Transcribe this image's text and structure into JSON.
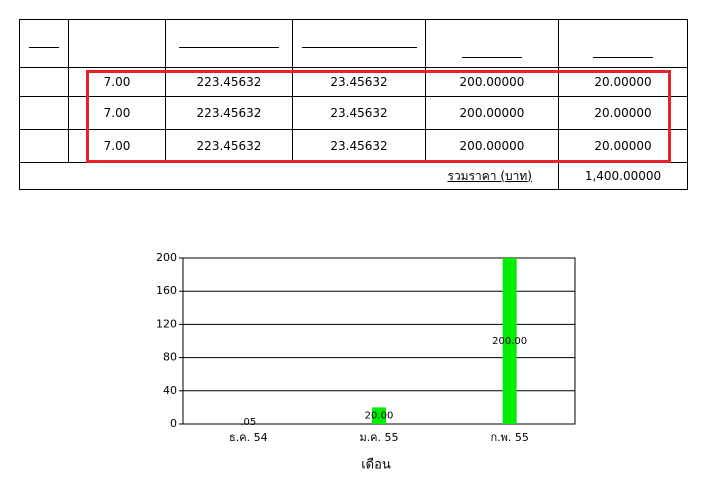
{
  "table": {
    "rows": [
      [
        "7.00",
        "223.45632",
        "23.45632",
        "200.00000",
        "20.00000"
      ],
      [
        "7.00",
        "223.45632",
        "23.45632",
        "200.00000",
        "20.00000"
      ],
      [
        "7.00",
        "223.45632",
        "23.45632",
        "200.00000",
        "20.00000"
      ]
    ],
    "total_label": "รวมราคา (บาท)",
    "total": "1,400.00000"
  },
  "chart_data": {
    "type": "bar",
    "categories": [
      "ธ.ค. 54",
      "ม.ค. 55",
      "ก.พ. 55"
    ],
    "values": [
      0.05,
      20,
      200
    ],
    "value_labels": [
      ".05",
      "20.00",
      "200.00"
    ],
    "color": "#00ee00",
    "ylim": [
      0,
      200
    ],
    "yticks": [
      0,
      40,
      80,
      120,
      160,
      200
    ],
    "grid": true,
    "x_label": "เดือน"
  }
}
